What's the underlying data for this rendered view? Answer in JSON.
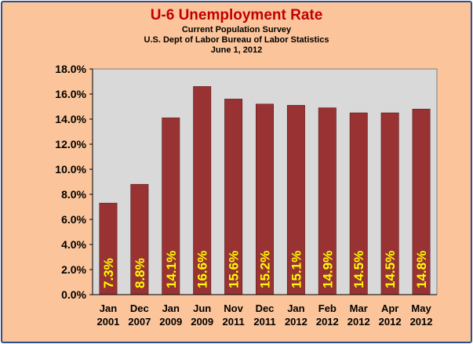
{
  "chart_data": {
    "type": "bar",
    "title": "U-6 Unemployment Rate",
    "subtitle_lines": [
      "Current Population Survey",
      "U.S. Dept of Labor Bureau of Labor Statistics",
      "June 1, 2012"
    ],
    "categories": [
      [
        "Jan",
        "2001"
      ],
      [
        "Dec",
        "2007"
      ],
      [
        "Jan",
        "2009"
      ],
      [
        "Jun",
        "2009"
      ],
      [
        "Nov",
        "2011"
      ],
      [
        "Dec",
        "2011"
      ],
      [
        "Jan",
        "2012"
      ],
      [
        "Feb",
        "2012"
      ],
      [
        "Mar",
        "2012"
      ],
      [
        "Apr",
        "2012"
      ],
      [
        "May",
        "2012"
      ]
    ],
    "values": [
      7.3,
      8.8,
      14.1,
      16.6,
      15.6,
      15.2,
      15.1,
      14.9,
      14.5,
      14.5,
      14.8
    ],
    "data_labels": [
      "7.3%",
      "8.8%",
      "14.1%",
      "16.6%",
      "15.6%",
      "15.2%",
      "15.1%",
      "14.9%",
      "14.5%",
      "14.5%",
      "14.8%"
    ],
    "ylim": [
      0,
      18
    ],
    "yticks": [
      "0.0%",
      "2.0%",
      "4.0%",
      "6.0%",
      "8.0%",
      "10.0%",
      "12.0%",
      "14.0%",
      "16.0%",
      "18.0%"
    ],
    "grid": false,
    "legend": "none",
    "colors": {
      "background": "#fbc49a",
      "plot_area": "#d9d9d9",
      "bar": "#993333",
      "data_label": "#ffff00",
      "title": "#c00000",
      "frame_border": "#2f4f8c"
    }
  }
}
